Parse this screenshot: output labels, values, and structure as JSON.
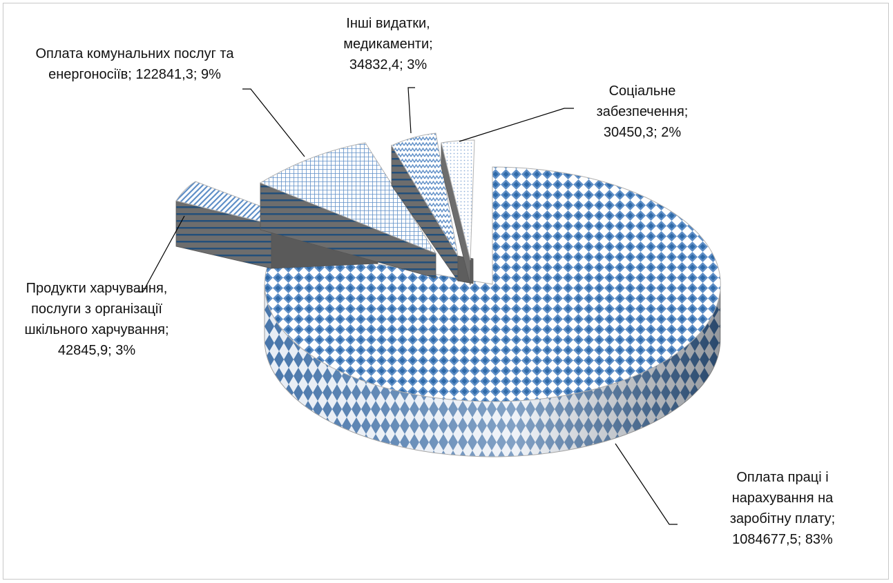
{
  "chart_data": {
    "type": "pie",
    "style": "3d-exploded",
    "title": "",
    "legend": "none",
    "slices": [
      {
        "name": "Оплата праці і нарахування на заробітну плату",
        "value": "1084677,5",
        "percent": "83%",
        "pct": 83,
        "pattern": "diamond"
      },
      {
        "name": "Продукти харчування, послуги з організації шкільного харчування",
        "value": "42845,9",
        "percent": "3%",
        "pct": 3,
        "pattern": "diagonal"
      },
      {
        "name": "Оплата комунальних послуг та енергоносіїв",
        "value": "122841,3",
        "percent": "9%",
        "pct": 9,
        "pattern": "grid"
      },
      {
        "name": "Інші видатки, медикаменти",
        "value": "34832,4",
        "percent": "3%",
        "pct": 3,
        "pattern": "zigzag"
      },
      {
        "name": "Соціальне забезпечення",
        "value": "30450,3",
        "percent": "2%",
        "pct": 2,
        "pattern": "dotted"
      }
    ],
    "colors": {
      "fill": "#6b9ad1",
      "fill_dark": "#2e5b8c",
      "side_gray": "#6d6d6d",
      "side_stripe": "#234f7a",
      "leader": "#000000"
    }
  }
}
